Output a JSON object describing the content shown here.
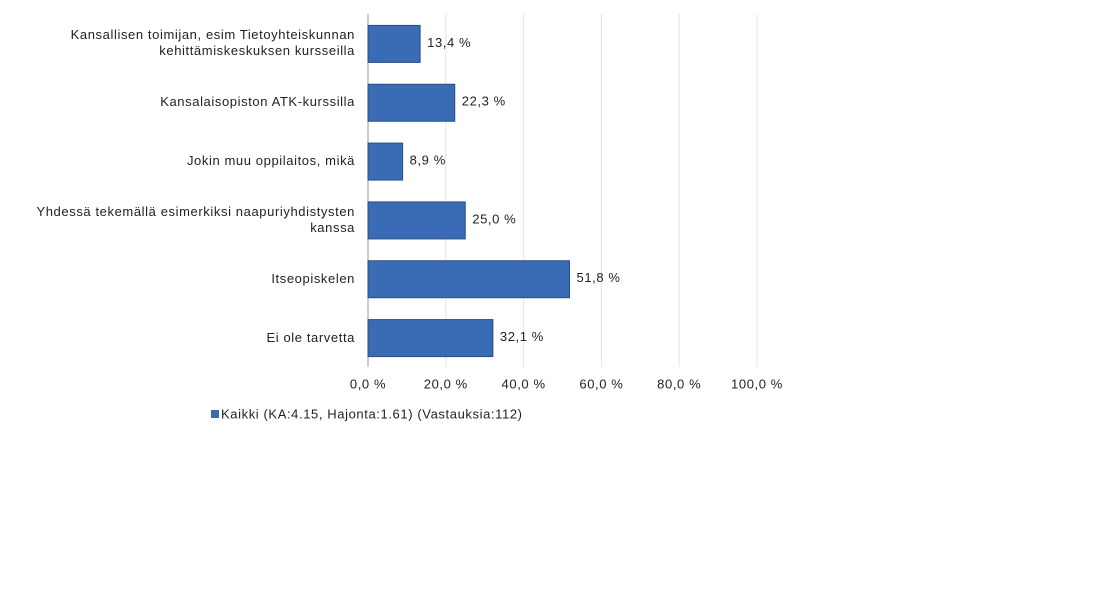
{
  "chart_data": {
    "type": "bar",
    "orientation": "horizontal",
    "categories": [
      "Kansallisen toimijan, esim Tietoyhteiskunnan kehittämiskeskuksen kursseilla",
      "Kansalaisopiston ATK-kurssilla",
      "Jokin muu oppilaitos, mikä",
      "Yhdessä tekemällä esimerkiksi naapuriyhdistysten kanssa",
      "Itseopiskelen",
      "Ei ole tarvetta"
    ],
    "series": [
      {
        "name": "Kaikki (KA:4.15, Hajonta:1.61) (Vastauksia:112)",
        "color": "#3a6bb5",
        "values": [
          13.4,
          22.3,
          8.9,
          25.0,
          51.8,
          32.1
        ],
        "value_labels": [
          "13,4 %",
          "22,3 %",
          "8,9 %",
          "25,0 %",
          "51,8 %",
          "32,1 %"
        ]
      }
    ],
    "xlim": [
      0,
      100
    ],
    "xticks": [
      {
        "value": 0,
        "label": "0,0 %"
      },
      {
        "value": 20,
        "label": "20,0 %"
      },
      {
        "value": 40,
        "label": "40,0 %"
      },
      {
        "value": 60,
        "label": "60,0 %"
      },
      {
        "value": 80,
        "label": "80,0 %"
      },
      {
        "value": 100,
        "label": "100,0 %"
      }
    ],
    "grid": true,
    "legend": "bottom"
  }
}
